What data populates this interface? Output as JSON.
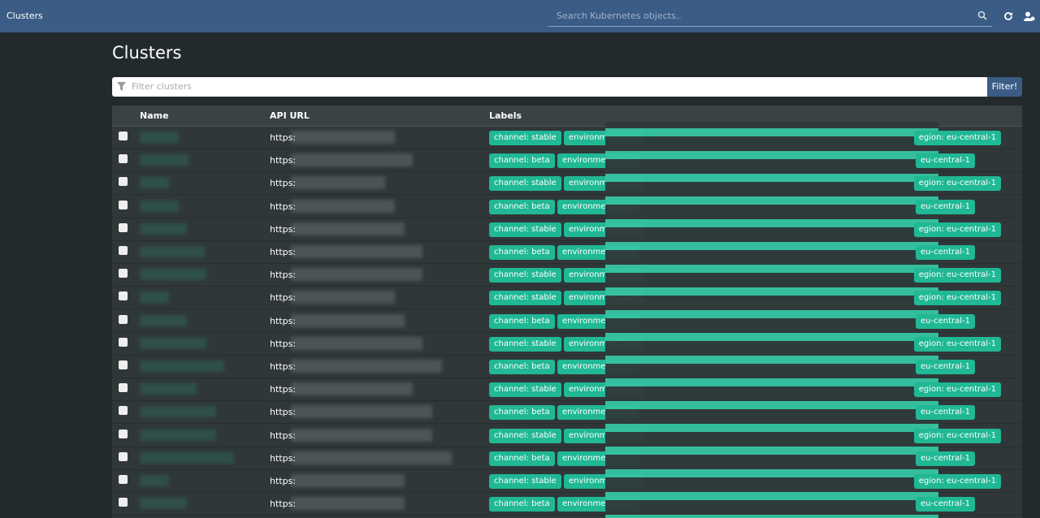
{
  "navbar": {
    "title": "Clusters",
    "search_placeholder": "Search Kubernetes objects.."
  },
  "heading": "Clusters",
  "filter": {
    "placeholder": "Filter clusters",
    "button": "Filter!"
  },
  "table": {
    "headers": [
      "Name",
      "API URL",
      "Labels"
    ],
    "rows": [
      {
        "api_url": "https:",
        "labels": [
          "channel: stable",
          "environment: pro",
          "egion: eu-central-1"
        ]
      },
      {
        "api_url": "https:",
        "labels": [
          "channel: beta",
          "environment: test",
          "eu-central-1"
        ]
      },
      {
        "api_url": "https:",
        "labels": [
          "channel: stable",
          "environment: pro",
          "egion: eu-central-1"
        ]
      },
      {
        "api_url": "https:",
        "labels": [
          "channel: beta",
          "environment: test",
          "eu-central-1"
        ]
      },
      {
        "api_url": "https:",
        "labels": [
          "channel: stable",
          "environment: pro",
          "egion: eu-central-1"
        ]
      },
      {
        "api_url": "https:",
        "labels": [
          "channel: beta",
          "environment: test",
          "eu-central-1"
        ]
      },
      {
        "api_url": "https:",
        "labels": [
          "channel: stable",
          "environment: pro",
          "egion: eu-central-1"
        ]
      },
      {
        "api_url": "https:",
        "labels": [
          "channel: stable",
          "environment: pro",
          "egion: eu-central-1"
        ]
      },
      {
        "api_url": "https:",
        "labels": [
          "channel: beta",
          "environment: test",
          "eu-central-1"
        ]
      },
      {
        "api_url": "https:",
        "labels": [
          "channel: stable",
          "environment: pro",
          "egion: eu-central-1"
        ]
      },
      {
        "api_url": "https:",
        "labels": [
          "channel: beta",
          "environment: test",
          "eu-central-1"
        ]
      },
      {
        "api_url": "https:",
        "labels": [
          "channel: stable",
          "environment: pro",
          "egion: eu-central-1"
        ]
      },
      {
        "api_url": "https:",
        "labels": [
          "channel: beta",
          "environment: test",
          "eu-central-1"
        ]
      },
      {
        "api_url": "https:",
        "labels": [
          "channel: stable",
          "environment: pro",
          "egion: eu-central-1"
        ]
      },
      {
        "api_url": "https:",
        "labels": [
          "channel: beta",
          "environment: test",
          "eu-central-1"
        ]
      },
      {
        "api_url": "https:",
        "labels": [
          "channel: stable",
          "environment: pro",
          "egion: eu-central-1"
        ]
      },
      {
        "api_url": "https:",
        "labels": [
          "channel: beta",
          "environment: test",
          "eu-central-1"
        ]
      }
    ]
  }
}
